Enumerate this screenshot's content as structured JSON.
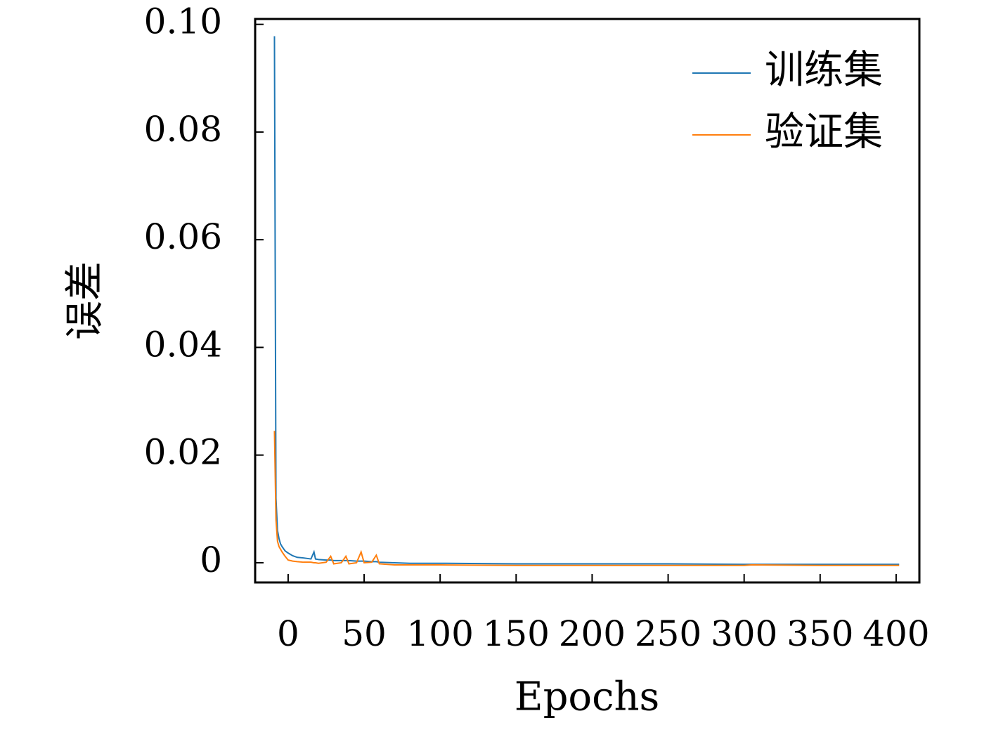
{
  "chart_data": {
    "type": "line",
    "x_label": "Epochs",
    "y_label": "误差",
    "x": [
      -9,
      -8,
      -7,
      -6,
      -5,
      -4,
      -2,
      0,
      3,
      6,
      10,
      15,
      17,
      18,
      20,
      25,
      28,
      30,
      35,
      38,
      40,
      45,
      48,
      50,
      55,
      58,
      60,
      70,
      80,
      100,
      150,
      200,
      250,
      300,
      305,
      350,
      402
    ],
    "series": [
      {
        "name": "训练集",
        "color": "#1f77b4",
        "values": [
          0.0978,
          0.012,
          0.006,
          0.0045,
          0.0035,
          0.003,
          0.0022,
          0.0018,
          0.0013,
          0.001,
          0.0009,
          0.0007,
          0.002,
          0.0007,
          0.0006,
          0.0005,
          0.0005,
          0.0004,
          0.0004,
          0.0004,
          0.0004,
          0.0003,
          0.0003,
          0.0003,
          0.0002,
          0.0002,
          0.0001,
          0,
          -0.0001,
          -0.0001,
          -0.0002,
          -0.0002,
          -0.0002,
          -0.0003,
          -0.0003,
          -0.0003,
          -0.0003
        ]
      },
      {
        "name": "验证集",
        "color": "#ff7f0e",
        "values": [
          0.0245,
          0.008,
          0.004,
          0.003,
          0.0025,
          0.002,
          0.0012,
          0.0005,
          0.0003,
          0.0002,
          0.0001,
          0.0001,
          0,
          0,
          -0.0001,
          0.0001,
          0.0012,
          -0.0002,
          0,
          0.0012,
          -0.0002,
          0,
          0.002,
          0,
          0.0001,
          0.0014,
          -0.0002,
          -0.0004,
          -0.0004,
          -0.0004,
          -0.0005,
          -0.0005,
          -0.0005,
          -0.0005,
          -0.0004,
          -0.0005,
          -0.0005
        ]
      }
    ],
    "xlim": [
      -21.7,
      415.3
    ],
    "xticks": [
      0,
      50,
      100,
      150,
      200,
      250,
      300,
      350,
      400
    ],
    "ylim": [
      -0.00366,
      0.101
    ],
    "yticks": [
      0,
      0.02,
      0.04,
      0.06,
      0.08,
      {
        "value": 0.1,
        "label": "0.10"
      }
    ],
    "legend": "upper right"
  }
}
